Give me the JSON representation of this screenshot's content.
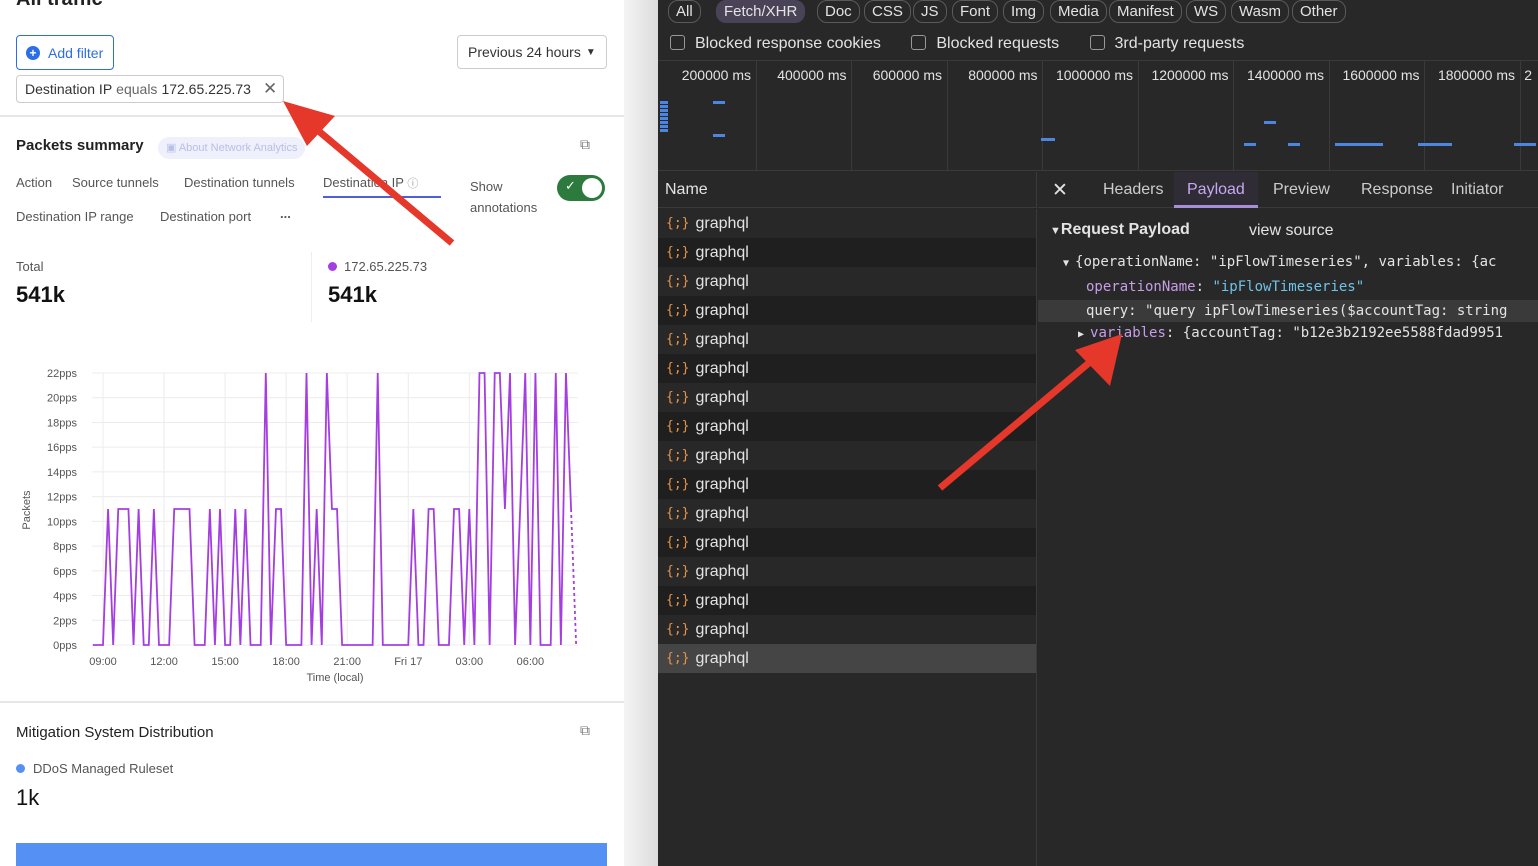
{
  "left": {
    "title_partial": "All traffic",
    "add_filter": "Add filter",
    "time_range": "Previous 24 hours",
    "filter_chip": {
      "field": "Destination IP",
      "op": "equals",
      "value": "172.65.225.73"
    },
    "packets": {
      "title": "Packets summary",
      "about": "About Network Analytics",
      "tabs": [
        "Action",
        "Source tunnels",
        "Destination tunnels",
        "Destination IP",
        "Destination IP range",
        "Destination port",
        "..."
      ],
      "active_tab": "Destination IP",
      "show_annotations": "Show annotations",
      "annotations_on": true,
      "total_label": "Total",
      "total_value": "541k",
      "ip_label": "172.65.225.73",
      "ip_value": "541k",
      "series_color": "#a53ee0"
    },
    "mitigation": {
      "title": "Mitigation System Distribution",
      "legend": "DDoS Managed Ruleset",
      "value": "1k",
      "bar_color": "#5591f5"
    }
  },
  "chart_data": {
    "type": "line",
    "xlabel": "Time (local)",
    "ylabel": "Packets",
    "ylim": [
      0,
      22
    ],
    "yticks": [
      "0pps",
      "2pps",
      "4pps",
      "6pps",
      "8pps",
      "10pps",
      "12pps",
      "14pps",
      "16pps",
      "18pps",
      "20pps",
      "22pps"
    ],
    "xticks": [
      "09:00",
      "12:00",
      "15:00",
      "18:00",
      "21:00",
      "Fri 17",
      "03:00",
      "06:00"
    ],
    "grid": true,
    "x": [
      "08:30",
      "09:00",
      "09:15",
      "09:30",
      "09:45",
      "10:15",
      "10:30",
      "10:45",
      "11:00",
      "11:15",
      "11:30",
      "11:45",
      "12:15",
      "12:30",
      "13:15",
      "13:30",
      "14:00",
      "14:15",
      "14:30",
      "14:45",
      "15:00",
      "15:15",
      "15:30",
      "15:45",
      "16:00",
      "16:15",
      "16:45",
      "17:00",
      "17:15",
      "17:30",
      "17:45",
      "18:00",
      "18:45",
      "19:00",
      "19:15",
      "19:30",
      "19:45",
      "20:00",
      "20:15",
      "20:30",
      "20:45",
      "22:15",
      "22:30",
      "22:45",
      "00:00",
      "00:15",
      "00:30",
      "00:45",
      "01:00",
      "01:15",
      "01:30",
      "02:00",
      "02:15",
      "02:30",
      "02:45",
      "03:00",
      "03:15",
      "03:30",
      "03:45",
      "04:00",
      "04:15",
      "04:30",
      "04:45",
      "05:00",
      "05:15",
      "05:45",
      "06:00",
      "06:15",
      "06:30",
      "07:00",
      "07:15",
      "07:30",
      "07:45",
      "08:00",
      "08:15"
    ],
    "y": [
      0,
      0,
      11,
      0,
      11,
      11,
      0,
      11,
      0,
      0,
      11,
      0,
      0,
      11,
      11,
      0,
      0,
      11,
      0,
      11,
      0,
      0,
      11,
      0,
      11,
      0,
      0,
      22,
      0,
      11,
      11,
      0,
      0,
      22,
      0,
      11,
      0,
      22,
      11,
      11,
      0,
      0,
      22,
      0,
      0,
      11,
      0,
      0,
      11,
      11,
      0,
      0,
      11,
      11,
      0,
      11,
      0,
      22,
      22,
      0,
      22,
      22,
      11,
      22,
      0,
      22,
      0,
      22,
      0,
      0,
      22,
      0,
      22,
      11,
      0
    ],
    "dashed_last_segment": true
  },
  "devtools": {
    "filters": [
      "All",
      "Fetch/XHR",
      "Doc",
      "CSS",
      "JS",
      "Font",
      "Img",
      "Media",
      "Manifest",
      "WS",
      "Wasm",
      "Other"
    ],
    "active_filter": "Fetch/XHR",
    "checkboxes": [
      "Blocked response cookies",
      "Blocked requests",
      "3rd-party requests"
    ],
    "timeline": [
      "200000 ms",
      "400000 ms",
      "600000 ms",
      "800000 ms",
      "1000000 ms",
      "1200000 ms",
      "1400000 ms",
      "1600000 ms",
      "1800000 ms",
      "2"
    ],
    "name_header": "Name",
    "requests": [
      "graphql",
      "graphql",
      "graphql",
      "graphql",
      "graphql",
      "graphql",
      "graphql",
      "graphql",
      "graphql",
      "graphql",
      "graphql",
      "graphql",
      "graphql",
      "graphql",
      "graphql",
      "graphql"
    ],
    "selected_index": 15,
    "detail_tabs": [
      "Headers",
      "Payload",
      "Preview",
      "Response",
      "Initiator"
    ],
    "active_detail_tab": "Payload",
    "payload": {
      "title": "Request Payload",
      "view_source": "view source",
      "summary": "{operationName: \"ipFlowTimeseries\", variables: {ac",
      "op_key": "operationName",
      "op_val": "\"ipFlowTimeseries\"",
      "query_key": "query",
      "query_val": "\"query ipFlowTimeseries($accountTag: string",
      "vars_key": "variables",
      "vars_val": "{accountTag: \"b12e3b2192ee5588fdad9951"
    }
  }
}
